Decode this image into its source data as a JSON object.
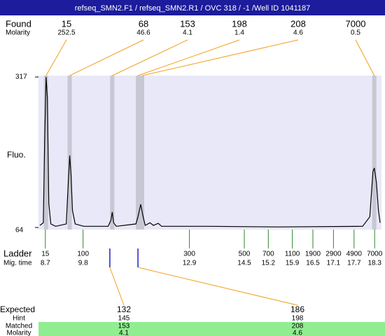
{
  "chart_data": {
    "type": "electropherogram",
    "title": "refseq_SMN2.F1 / refseq_SMN2.R1 / OVC 318 / -1 /Well ID 1041187",
    "found_label": "Found",
    "found_sublabel": "Molarity",
    "found": [
      {
        "size": 15,
        "molarity": 252.5,
        "x": 8.72
      },
      {
        "size": 68,
        "molarity": 46.6,
        "x": 9.41
      },
      {
        "size": 153,
        "molarity": 4.1,
        "x": 10.65
      },
      {
        "size": 198,
        "molarity": 1.4,
        "x": 11.4
      },
      {
        "size": 208,
        "molarity": 4.6,
        "x": 11.52
      },
      {
        "size": 7000,
        "molarity": 0.5,
        "x": 18.29
      }
    ],
    "ylabel": "Fluo.",
    "ylim": [
      64,
      317
    ],
    "yticks": [
      64,
      317
    ],
    "xlim": [
      8.5,
      18.5
    ],
    "trace": {
      "x": [
        8.54,
        8.64,
        8.68,
        8.72,
        8.76,
        8.8,
        8.86,
        9.0,
        9.31,
        9.37,
        9.41,
        9.45,
        9.49,
        9.57,
        9.82,
        10.53,
        10.61,
        10.65,
        10.69,
        10.77,
        11.34,
        11.4,
        11.48,
        11.55,
        11.61,
        11.75,
        11.85,
        11.99,
        12.09,
        13.48,
        15.51,
        17.95,
        18.16,
        18.25,
        18.29,
        18.35,
        18.41,
        18.46
      ],
      "values": [
        67.5,
        72,
        211,
        317,
        282,
        105,
        70,
        66,
        70,
        140,
        185,
        152,
        93,
        70,
        66,
        66,
        76,
        90,
        72,
        66,
        70,
        82,
        103,
        82,
        67.5,
        72,
        67.5,
        71,
        66,
        66,
        65,
        66,
        82,
        158,
        164,
        140,
        93,
        72
      ]
    },
    "ladder_label": "Ladder",
    "ladder_sublabel": "Mig. time",
    "ladder": [
      {
        "size": 15,
        "time": 8.7
      },
      {
        "size": 100,
        "time": 9.8
      },
      {
        "size": 300,
        "time": 12.9
      },
      {
        "size": 500,
        "time": 14.5
      },
      {
        "size": 700,
        "time": 15.2
      },
      {
        "size": 1100,
        "time": 15.9
      },
      {
        "size": 1900,
        "time": 16.5
      },
      {
        "size": 2900,
        "time": 17.1
      },
      {
        "size": 4900,
        "time": 17.7
      },
      {
        "size": 7000,
        "time": 18.3
      }
    ],
    "expected_labels": [
      "Expected",
      "Hint",
      "Matched",
      "Molarity"
    ],
    "expected": [
      {
        "size": 132,
        "hint": 145,
        "matched": 153,
        "molarity": 4.1,
        "x": 10.58
      },
      {
        "size": 186,
        "hint": 198,
        "matched": 208,
        "molarity": 4.6,
        "x": 11.4
      }
    ]
  }
}
